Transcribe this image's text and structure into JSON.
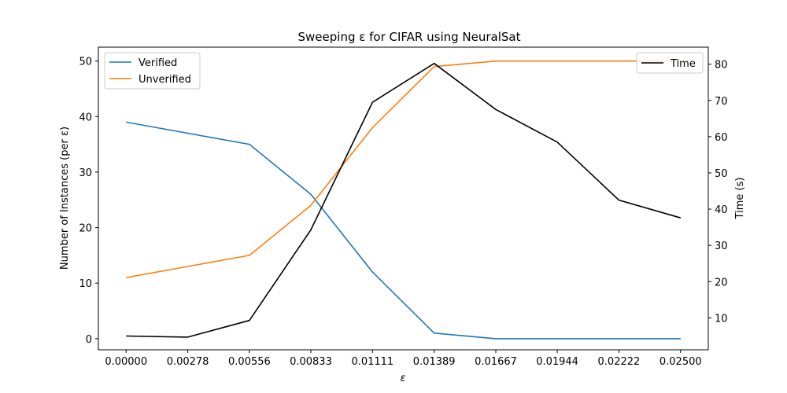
{
  "chart_data": {
    "type": "line",
    "title": "Sweeping ε for CIFAR using NeuralSat",
    "xlabel": "ε",
    "ylabel": "Number of Instances (per ε)",
    "y2label": "Time (s)",
    "x": [
      "0.00000",
      "0.00278",
      "0.00556",
      "0.00833",
      "0.01111",
      "0.01389",
      "0.01667",
      "0.01944",
      "0.02222",
      "0.02500"
    ],
    "xlim": [
      -0.00125,
      0.02625
    ],
    "ylim": [
      -2,
      52.5
    ],
    "y2lim": [
      1.2,
      84.7
    ],
    "yticks": [
      "0",
      "10",
      "20",
      "30",
      "40",
      "50"
    ],
    "y2ticks": [
      "10",
      "20",
      "30",
      "40",
      "50",
      "60",
      "70",
      "80"
    ],
    "series": [
      {
        "name": "Verified",
        "axis": "left",
        "color": "#1f77b4",
        "values": [
          39,
          37,
          35,
          26,
          12,
          1,
          0,
          0,
          0,
          0
        ]
      },
      {
        "name": "Unverified",
        "axis": "left",
        "color": "#ff7f0e",
        "values": [
          11,
          13,
          15,
          24,
          38,
          49,
          50,
          50,
          50,
          50
        ]
      }
    ],
    "series_right": [
      {
        "name": "Time",
        "axis": "right",
        "color": "#000000",
        "values": [
          5.0,
          4.7,
          9.3,
          34.3,
          69.5,
          80.2,
          67.5,
          58.5,
          42.5,
          37.6
        ]
      }
    ],
    "legend_left_placement": "upper-left",
    "legend_right_placement": "upper-right",
    "grid": false
  }
}
